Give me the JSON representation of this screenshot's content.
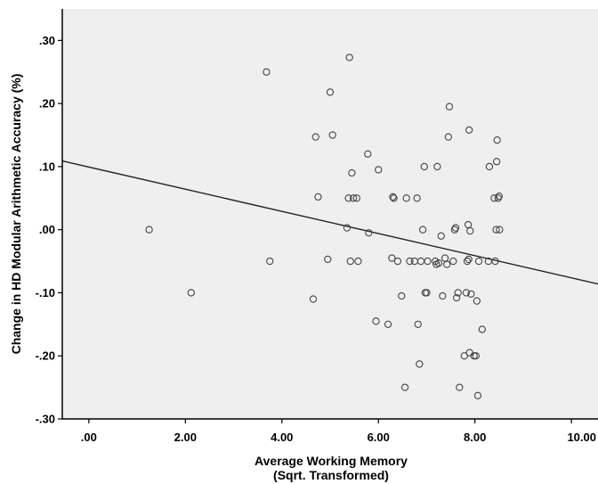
{
  "chart_data": {
    "type": "scatter",
    "title": "",
    "xlabel": "Average Working Memory",
    "xlabel_line2": "(Sqrt. Transformed)",
    "ylabel": "Change in HD Modular Arithmetic Accuracy (%)",
    "xlim": [
      -0.55,
      10.55
    ],
    "ylim": [
      -0.3,
      0.35
    ],
    "x_ticks": [
      0,
      2,
      4,
      6,
      8,
      10
    ],
    "x_tick_labels": [
      ".00",
      "2.00",
      "4.00",
      "6.00",
      "8.00",
      "10.00"
    ],
    "y_ticks": [
      -0.3,
      -0.2,
      -0.1,
      0.0,
      0.1,
      0.2,
      0.3
    ],
    "y_tick_labels": [
      "-.30",
      "-.20",
      "-.10",
      ".00",
      ".10",
      ".20",
      ".30"
    ],
    "grid": false,
    "colors": {
      "plot_background": "#efefef",
      "marker": "#444444",
      "line": "#222222"
    },
    "fit_line": {
      "x": [
        -0.55,
        10.55
      ],
      "y": [
        0.109,
        -0.086
      ]
    },
    "points": [
      {
        "x": 1.25,
        "y": 0.0
      },
      {
        "x": 2.12,
        "y": -0.1
      },
      {
        "x": 3.68,
        "y": 0.25
      },
      {
        "x": 3.75,
        "y": -0.05
      },
      {
        "x": 4.65,
        "y": -0.11
      },
      {
        "x": 4.7,
        "y": 0.147
      },
      {
        "x": 4.75,
        "y": 0.052
      },
      {
        "x": 4.95,
        "y": -0.047
      },
      {
        "x": 5.0,
        "y": 0.218
      },
      {
        "x": 5.05,
        "y": 0.15
      },
      {
        "x": 5.35,
        "y": 0.003
      },
      {
        "x": 5.38,
        "y": 0.05
      },
      {
        "x": 5.4,
        "y": 0.273
      },
      {
        "x": 5.42,
        "y": -0.05
      },
      {
        "x": 5.45,
        "y": 0.09
      },
      {
        "x": 5.48,
        "y": 0.05
      },
      {
        "x": 5.55,
        "y": 0.05
      },
      {
        "x": 5.58,
        "y": -0.05
      },
      {
        "x": 5.78,
        "y": 0.12
      },
      {
        "x": 5.8,
        "y": -0.005
      },
      {
        "x": 5.95,
        "y": -0.145
      },
      {
        "x": 6.0,
        "y": 0.095
      },
      {
        "x": 6.2,
        "y": -0.15
      },
      {
        "x": 6.28,
        "y": -0.045
      },
      {
        "x": 6.3,
        "y": 0.052
      },
      {
        "x": 6.32,
        "y": 0.05
      },
      {
        "x": 6.4,
        "y": -0.05
      },
      {
        "x": 6.48,
        "y": -0.105
      },
      {
        "x": 6.55,
        "y": -0.25
      },
      {
        "x": 6.58,
        "y": 0.05
      },
      {
        "x": 6.65,
        "y": -0.05
      },
      {
        "x": 6.75,
        "y": -0.05
      },
      {
        "x": 6.8,
        "y": 0.05
      },
      {
        "x": 6.82,
        "y": -0.15
      },
      {
        "x": 6.85,
        "y": -0.213
      },
      {
        "x": 6.88,
        "y": -0.05
      },
      {
        "x": 6.92,
        "y": 0.0
      },
      {
        "x": 6.95,
        "y": 0.1
      },
      {
        "x": 6.97,
        "y": -0.1
      },
      {
        "x": 7.0,
        "y": -0.1
      },
      {
        "x": 7.02,
        "y": -0.05
      },
      {
        "x": 7.18,
        "y": -0.05
      },
      {
        "x": 7.2,
        "y": -0.055
      },
      {
        "x": 7.22,
        "y": 0.1
      },
      {
        "x": 7.25,
        "y": -0.053
      },
      {
        "x": 7.3,
        "y": -0.01
      },
      {
        "x": 7.33,
        "y": -0.105
      },
      {
        "x": 7.38,
        "y": -0.045
      },
      {
        "x": 7.42,
        "y": -0.055
      },
      {
        "x": 7.45,
        "y": 0.147
      },
      {
        "x": 7.47,
        "y": 0.195
      },
      {
        "x": 7.55,
        "y": -0.05
      },
      {
        "x": 7.58,
        "y": 0.0
      },
      {
        "x": 7.6,
        "y": 0.003
      },
      {
        "x": 7.62,
        "y": -0.108
      },
      {
        "x": 7.65,
        "y": -0.1
      },
      {
        "x": 7.68,
        "y": -0.25
      },
      {
        "x": 7.78,
        "y": -0.2
      },
      {
        "x": 7.82,
        "y": -0.1
      },
      {
        "x": 7.84,
        "y": -0.05
      },
      {
        "x": 7.86,
        "y": 0.008
      },
      {
        "x": 7.87,
        "y": -0.047
      },
      {
        "x": 7.88,
        "y": 0.158
      },
      {
        "x": 7.89,
        "y": -0.195
      },
      {
        "x": 7.9,
        "y": -0.002
      },
      {
        "x": 7.92,
        "y": -0.102
      },
      {
        "x": 7.98,
        "y": -0.2
      },
      {
        "x": 8.02,
        "y": -0.2
      },
      {
        "x": 8.04,
        "y": -0.113
      },
      {
        "x": 8.06,
        "y": -0.263
      },
      {
        "x": 8.08,
        "y": -0.05
      },
      {
        "x": 8.15,
        "y": -0.158
      },
      {
        "x": 8.28,
        "y": -0.05
      },
      {
        "x": 8.3,
        "y": 0.1
      },
      {
        "x": 8.4,
        "y": 0.05
      },
      {
        "x": 8.42,
        "y": -0.05
      },
      {
        "x": 8.44,
        "y": 0.0
      },
      {
        "x": 8.45,
        "y": 0.108
      },
      {
        "x": 8.46,
        "y": 0.142
      },
      {
        "x": 8.48,
        "y": 0.05
      },
      {
        "x": 8.5,
        "y": 0.053
      },
      {
        "x": 8.51,
        "y": 0.0
      }
    ]
  }
}
